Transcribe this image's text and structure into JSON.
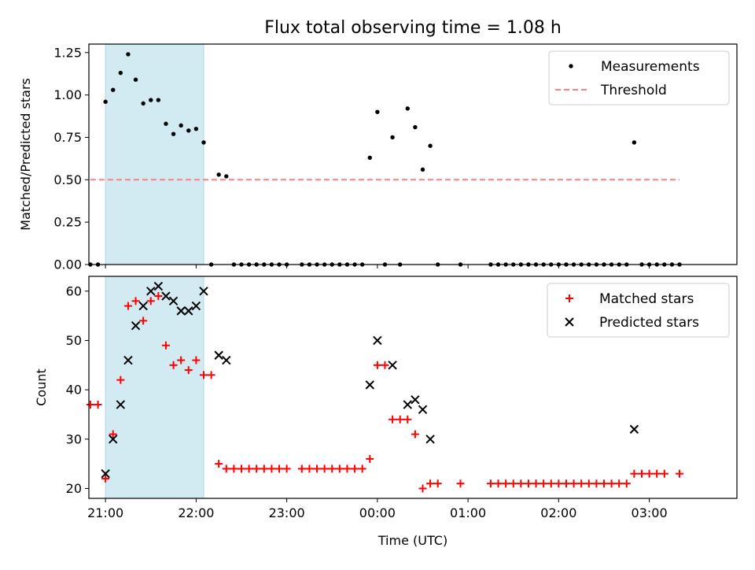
{
  "figure": {
    "title": "Flux total observing time = 1.08 h",
    "xlabel": "Time (UTC)"
  },
  "colors": {
    "measurement": "#000000",
    "threshold": "#ff7f7f",
    "matched": "#ff0000",
    "predicted": "#000000",
    "span": "#add8e6"
  },
  "chart_data": [
    {
      "type": "scatter",
      "ylabel": "Matched/Predicted stars",
      "xlim": [
        "20:49",
        "03:58"
      ],
      "ylim": [
        0,
        1.3
      ],
      "yticks": [
        {
          "value": 0,
          "label": "0.00"
        },
        {
          "value": 0.25,
          "label": "0.25"
        },
        {
          "value": 0.5,
          "label": "0.50"
        },
        {
          "value": 0.75,
          "label": "0.75"
        },
        {
          "value": 1.0,
          "label": "1.00"
        },
        {
          "value": 1.25,
          "label": "1.25"
        }
      ],
      "highlight_span": [
        "21:00",
        "22:05"
      ],
      "legend": {
        "location": "upper right",
        "entries": [
          "Measurements",
          "Threshold"
        ]
      },
      "series": [
        {
          "name": "Measurements",
          "marker": "dot",
          "points": [
            [
              "20:50",
              0
            ],
            [
              "20:55",
              0
            ],
            [
              "21:00",
              0.96
            ],
            [
              "21:05",
              1.03
            ],
            [
              "21:10",
              1.13
            ],
            [
              "21:15",
              1.24
            ],
            [
              "21:20",
              1.09
            ],
            [
              "21:25",
              0.95
            ],
            [
              "21:30",
              0.97
            ],
            [
              "21:35",
              0.97
            ],
            [
              "21:40",
              0.83
            ],
            [
              "21:45",
              0.77
            ],
            [
              "21:50",
              0.82
            ],
            [
              "21:55",
              0.79
            ],
            [
              "22:00",
              0.8
            ],
            [
              "22:05",
              0.72
            ],
            [
              "22:10",
              0
            ],
            [
              "22:15",
              0.53
            ],
            [
              "22:20",
              0.52
            ],
            [
              "22:25",
              0
            ],
            [
              "22:30",
              0
            ],
            [
              "22:35",
              0
            ],
            [
              "22:40",
              0
            ],
            [
              "22:45",
              0
            ],
            [
              "22:50",
              0
            ],
            [
              "22:55",
              0
            ],
            [
              "23:00",
              0
            ],
            [
              "23:10",
              0
            ],
            [
              "23:15",
              0
            ],
            [
              "23:20",
              0
            ],
            [
              "23:25",
              0
            ],
            [
              "23:30",
              0
            ],
            [
              "23:35",
              0
            ],
            [
              "23:40",
              0
            ],
            [
              "23:45",
              0
            ],
            [
              "23:50",
              0
            ],
            [
              "23:55",
              0.63
            ],
            [
              "00:00",
              0.9
            ],
            [
              "00:05",
              0
            ],
            [
              "00:10",
              0.75
            ],
            [
              "00:15",
              0
            ],
            [
              "00:20",
              0.92
            ],
            [
              "00:25",
              0.81
            ],
            [
              "00:30",
              0.56
            ],
            [
              "00:35",
              0.7
            ],
            [
              "00:40",
              0
            ],
            [
              "00:55",
              0
            ],
            [
              "01:15",
              0
            ],
            [
              "01:20",
              0
            ],
            [
              "01:25",
              0
            ],
            [
              "01:30",
              0
            ],
            [
              "01:35",
              0
            ],
            [
              "01:40",
              0
            ],
            [
              "01:45",
              0
            ],
            [
              "01:50",
              0
            ],
            [
              "01:55",
              0
            ],
            [
              "02:00",
              0
            ],
            [
              "02:05",
              0
            ],
            [
              "02:10",
              0
            ],
            [
              "02:15",
              0
            ],
            [
              "02:20",
              0
            ],
            [
              "02:25",
              0
            ],
            [
              "02:30",
              0
            ],
            [
              "02:35",
              0
            ],
            [
              "02:40",
              0
            ],
            [
              "02:45",
              0
            ],
            [
              "02:50",
              0.72
            ],
            [
              "02:55",
              0
            ],
            [
              "03:00",
              0
            ],
            [
              "03:05",
              0
            ],
            [
              "03:10",
              0
            ],
            [
              "03:15",
              0
            ],
            [
              "03:20",
              0
            ]
          ]
        },
        {
          "name": "Threshold",
          "style": "dashed-line",
          "points": [
            [
              "20:50",
              0.5
            ],
            [
              "03:20",
              0.5
            ]
          ]
        }
      ]
    },
    {
      "type": "scatter",
      "ylabel": "Count",
      "xlim": [
        "20:49",
        "03:58"
      ],
      "ylim": [
        18,
        63
      ],
      "yticks": [
        {
          "value": 20,
          "label": "20"
        },
        {
          "value": 30,
          "label": "30"
        },
        {
          "value": 40,
          "label": "40"
        },
        {
          "value": 50,
          "label": "50"
        },
        {
          "value": 60,
          "label": "60"
        }
      ],
      "xticks": [
        {
          "value": "21:00",
          "label": "21:00"
        },
        {
          "value": "22:00",
          "label": "22:00"
        },
        {
          "value": "23:00",
          "label": "23:00"
        },
        {
          "value": "00:00",
          "label": "00:00"
        },
        {
          "value": "01:00",
          "label": "01:00"
        },
        {
          "value": "02:00",
          "label": "02:00"
        },
        {
          "value": "03:00",
          "label": "03:00"
        }
      ],
      "highlight_span": [
        "21:00",
        "22:05"
      ],
      "legend": {
        "location": "upper right",
        "entries": [
          "Matched stars",
          "Predicted stars"
        ]
      },
      "series": [
        {
          "name": "Matched stars",
          "marker": "plus",
          "points": [
            [
              "20:50",
              37
            ],
            [
              "20:55",
              37
            ],
            [
              "21:00",
              22
            ],
            [
              "21:05",
              31
            ],
            [
              "21:10",
              42
            ],
            [
              "21:15",
              57
            ],
            [
              "21:20",
              58
            ],
            [
              "21:25",
              54
            ],
            [
              "21:30",
              58
            ],
            [
              "21:35",
              59
            ],
            [
              "21:40",
              49
            ],
            [
              "21:45",
              45
            ],
            [
              "21:50",
              46
            ],
            [
              "21:55",
              44
            ],
            [
              "22:00",
              46
            ],
            [
              "22:05",
              43
            ],
            [
              "22:10",
              43
            ],
            [
              "22:15",
              25
            ],
            [
              "22:20",
              24
            ],
            [
              "22:25",
              24
            ],
            [
              "22:30",
              24
            ],
            [
              "22:35",
              24
            ],
            [
              "22:40",
              24
            ],
            [
              "22:45",
              24
            ],
            [
              "22:50",
              24
            ],
            [
              "22:55",
              24
            ],
            [
              "23:00",
              24
            ],
            [
              "23:10",
              24
            ],
            [
              "23:15",
              24
            ],
            [
              "23:20",
              24
            ],
            [
              "23:25",
              24
            ],
            [
              "23:30",
              24
            ],
            [
              "23:35",
              24
            ],
            [
              "23:40",
              24
            ],
            [
              "23:45",
              24
            ],
            [
              "23:50",
              24
            ],
            [
              "23:55",
              26
            ],
            [
              "00:00",
              45
            ],
            [
              "00:05",
              45
            ],
            [
              "00:10",
              34
            ],
            [
              "00:15",
              34
            ],
            [
              "00:20",
              34
            ],
            [
              "00:25",
              31
            ],
            [
              "00:30",
              20
            ],
            [
              "00:35",
              21
            ],
            [
              "00:40",
              21
            ],
            [
              "00:55",
              21
            ],
            [
              "01:15",
              21
            ],
            [
              "01:20",
              21
            ],
            [
              "01:25",
              21
            ],
            [
              "01:30",
              21
            ],
            [
              "01:35",
              21
            ],
            [
              "01:40",
              21
            ],
            [
              "01:45",
              21
            ],
            [
              "01:50",
              21
            ],
            [
              "01:55",
              21
            ],
            [
              "02:00",
              21
            ],
            [
              "02:05",
              21
            ],
            [
              "02:10",
              21
            ],
            [
              "02:15",
              21
            ],
            [
              "02:20",
              21
            ],
            [
              "02:25",
              21
            ],
            [
              "02:30",
              21
            ],
            [
              "02:35",
              21
            ],
            [
              "02:40",
              21
            ],
            [
              "02:45",
              21
            ],
            [
              "02:50",
              23
            ],
            [
              "02:55",
              23
            ],
            [
              "03:00",
              23
            ],
            [
              "03:05",
              23
            ],
            [
              "03:10",
              23
            ],
            [
              "03:20",
              23
            ]
          ]
        },
        {
          "name": "Predicted stars",
          "marker": "x",
          "points": [
            [
              "21:00",
              23
            ],
            [
              "21:05",
              30
            ],
            [
              "21:10",
              37
            ],
            [
              "21:15",
              46
            ],
            [
              "21:20",
              53
            ],
            [
              "21:25",
              57
            ],
            [
              "21:30",
              60
            ],
            [
              "21:35",
              61
            ],
            [
              "21:40",
              59
            ],
            [
              "21:45",
              58
            ],
            [
              "21:50",
              56
            ],
            [
              "21:55",
              56
            ],
            [
              "22:00",
              57
            ],
            [
              "22:05",
              60
            ],
            [
              "22:15",
              47
            ],
            [
              "22:20",
              46
            ],
            [
              "23:55",
              41
            ],
            [
              "00:00",
              50
            ],
            [
              "00:10",
              45
            ],
            [
              "00:20",
              37
            ],
            [
              "00:25",
              38
            ],
            [
              "00:30",
              36
            ],
            [
              "00:35",
              30
            ],
            [
              "02:50",
              32
            ]
          ]
        }
      ]
    }
  ]
}
